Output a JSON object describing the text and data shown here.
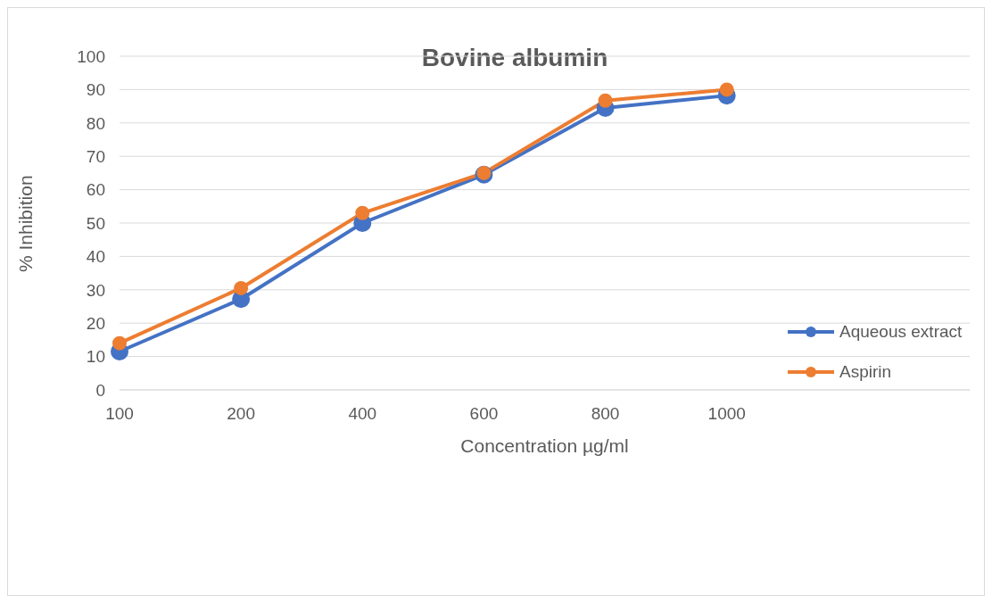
{
  "chart_data": {
    "type": "line",
    "title": "Bovine albumin",
    "xlabel": "Concentration µg/ml",
    "ylabel": "% Inhibition",
    "categories": [
      "100",
      "200",
      "400",
      "600",
      "800",
      "1000",
      null,
      null
    ],
    "series": [
      {
        "name": "Aqueous extract",
        "color": "#4472c4",
        "values": [
          11.5,
          27.2,
          50,
          64.5,
          84.5,
          88.2,
          null,
          null
        ]
      },
      {
        "name": "Aspirin",
        "color": "#ed7d31",
        "values": [
          14,
          30.5,
          53,
          65,
          86.7,
          90,
          null,
          null
        ]
      }
    ],
    "ylim": [
      0,
      100
    ],
    "yticks": [
      0,
      10,
      20,
      30,
      40,
      50,
      60,
      70,
      80,
      90,
      100
    ],
    "grid": "y",
    "legend": "right",
    "marker": "circle",
    "line_style": "solid"
  }
}
